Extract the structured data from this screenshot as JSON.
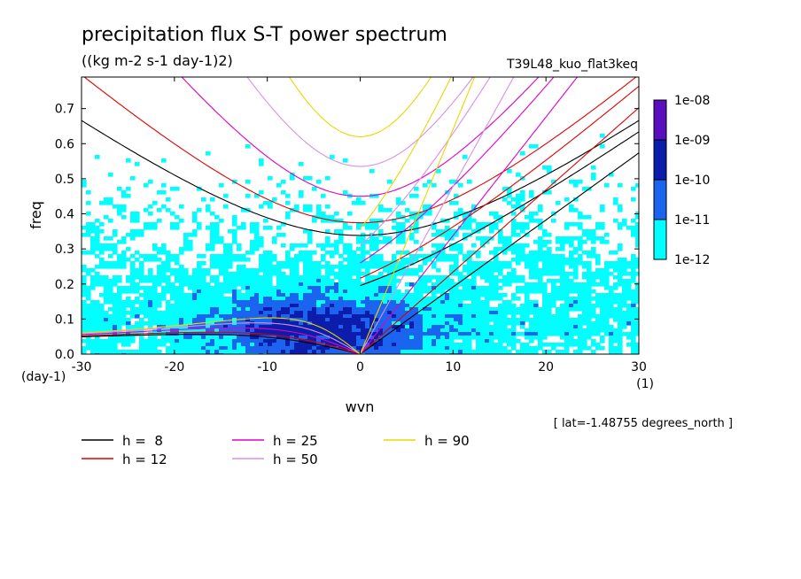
{
  "chart_data": {
    "type": "heatmap",
    "title": "precipitation flux S-T power spectrum",
    "subtitle": "((kg m-2 s-1 day-1)2)",
    "experiment": "T39L48_kuo_flat3keq",
    "xlabel": "wvn",
    "ylabel": "freq",
    "x_units": "(1)",
    "y_units": "(day-1)",
    "xlim": [
      -30,
      30
    ],
    "ylim": [
      0,
      0.79
    ],
    "x_ticks": [
      {
        "value": -30,
        "label": "-30"
      },
      {
        "value": -20,
        "label": "-20"
      },
      {
        "value": -10,
        "label": "-10"
      },
      {
        "value": 0,
        "label": "0"
      },
      {
        "value": 10,
        "label": "10"
      },
      {
        "value": 20,
        "label": "20"
      },
      {
        "value": 30,
        "label": "30"
      }
    ],
    "y_ticks": [
      {
        "value": 0.0,
        "label": "0.0"
      },
      {
        "value": 0.1,
        "label": "0.1"
      },
      {
        "value": 0.2,
        "label": "0.2"
      },
      {
        "value": 0.3,
        "label": "0.3"
      },
      {
        "value": 0.4,
        "label": "0.4"
      },
      {
        "value": 0.5,
        "label": "0.5"
      },
      {
        "value": 0.6,
        "label": "0.6"
      },
      {
        "value": 0.7,
        "label": "0.7"
      }
    ],
    "colorbar": {
      "labels": [
        "1e-08",
        "1e-09",
        "1e-10",
        "1e-11",
        "1e-12"
      ],
      "colors": [
        "#5a0fbe",
        "#0c1cab",
        "#1a64f0",
        "#00ffff"
      ]
    },
    "contour_levels": [
      1e-12,
      1e-11,
      1e-10
    ],
    "annotation": "[ lat=-1.48755 degrees_north ]",
    "dispersion_curves": [
      {
        "label": "h =  8",
        "h": 8,
        "color": "#000000"
      },
      {
        "label": "h = 12",
        "h": 12,
        "color": "#e00000"
      },
      {
        "label": "h = 25",
        "h": 25,
        "color": "#e000c8"
      },
      {
        "label": "h = 50",
        "h": 50,
        "color": "#d890e8"
      },
      {
        "label": "h = 90",
        "h": 90,
        "color": "#e8d800"
      }
    ],
    "grid": false,
    "legend_position": "bottom-left"
  }
}
